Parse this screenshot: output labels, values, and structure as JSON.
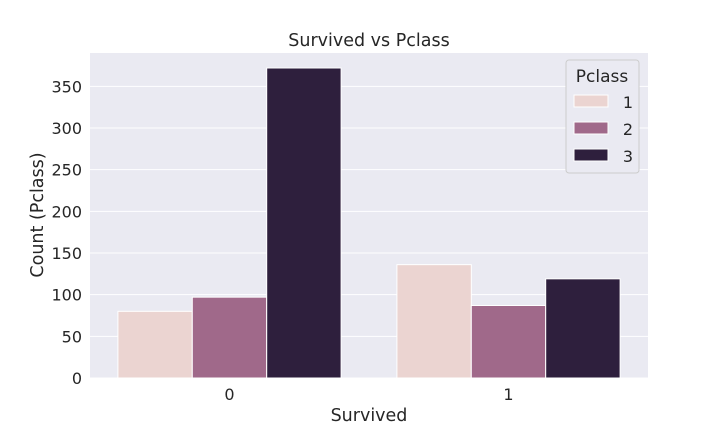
{
  "chart_data": {
    "type": "bar",
    "title": "Survived vs Pclass",
    "xlabel": "Survived",
    "ylabel": "Count (Pclass)",
    "categories": [
      "0",
      "1"
    ],
    "series": [
      {
        "name": "1",
        "values": [
          80,
          136
        ],
        "color": "#ebd4d1"
      },
      {
        "name": "2",
        "values": [
          97,
          87
        ],
        "color": "#a0698a"
      },
      {
        "name": "3",
        "values": [
          372,
          119
        ],
        "color": "#2e1f3d"
      }
    ],
    "ylim": [
      0,
      390
    ],
    "yticks": [
      "0",
      "50",
      "100",
      "150",
      "200",
      "250",
      "300",
      "350"
    ],
    "grid": true,
    "legend": {
      "title": "Pclass",
      "placement": "top-right"
    },
    "background": "#eaeaf2"
  }
}
